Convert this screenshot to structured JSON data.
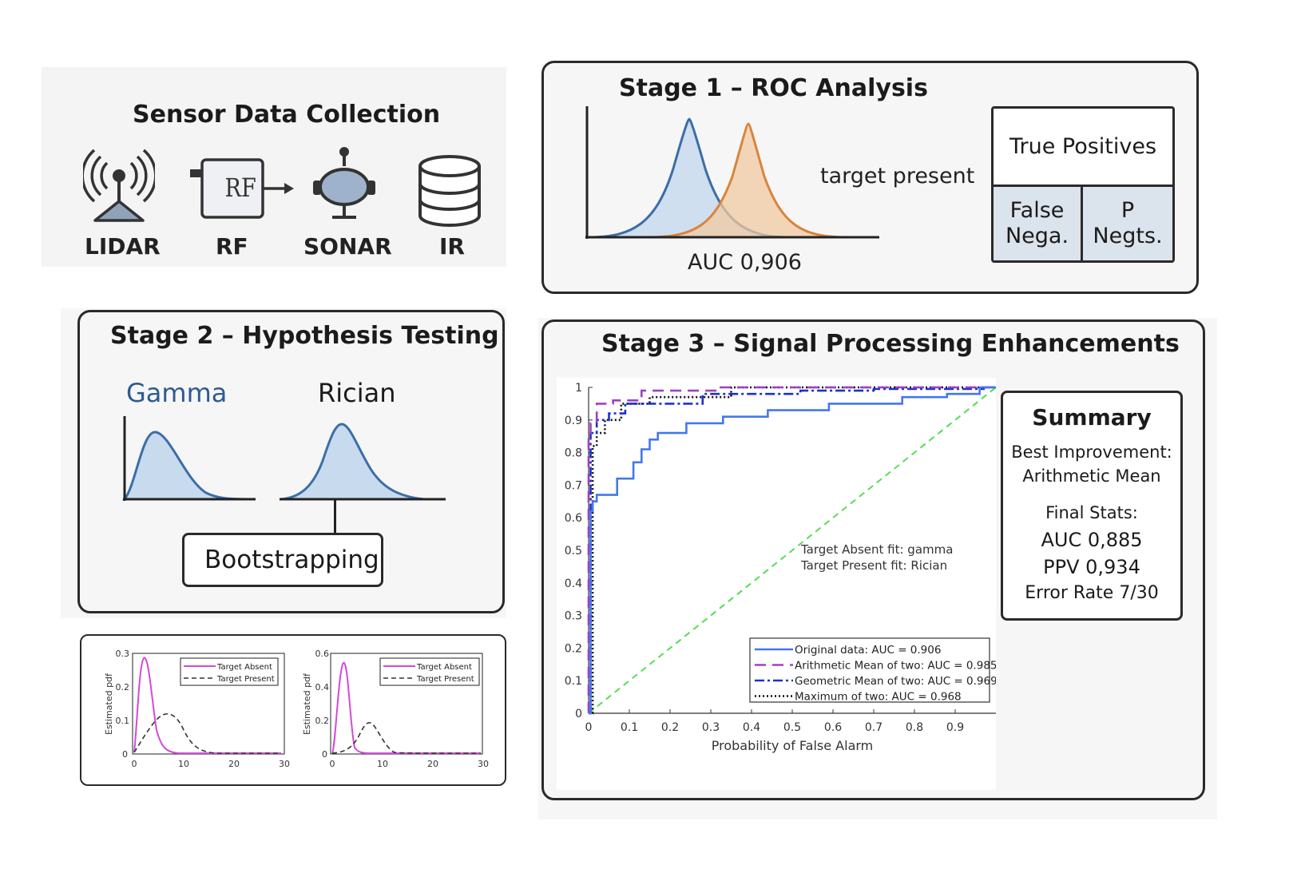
{
  "sensor": {
    "title": "Sensor Data Collection",
    "items": [
      {
        "label": "LIDAR",
        "icon": "antenna-icon"
      },
      {
        "label": "RF",
        "icon": "rf-module-icon"
      },
      {
        "label": "SONAR",
        "icon": "sonar-icon"
      },
      {
        "label": "IR",
        "icon": "database-icon"
      }
    ],
    "rf_glyph": "RF"
  },
  "stage1": {
    "title": "Stage 1 – ROC Analysis",
    "curve_label": "target present",
    "auc": "AUC 0,906",
    "matrix": {
      "top": "True Positives",
      "bottom_left_1": "False",
      "bottom_left_2": "Nega.",
      "bottom_right_1": "P",
      "bottom_right_2": "Negts."
    },
    "colors": {
      "blue": "#3b6ea8",
      "orange": "#d9843b"
    }
  },
  "stage2": {
    "title": "Stage 2 – Hypothesis Testing",
    "gamma": "Gamma",
    "rician": "Rician",
    "bootstrapping": "Bootstrapping"
  },
  "pdfs": {
    "ylabel": "Estimated pdf",
    "legend_absent": "Target Absent",
    "legend_present": "Target Present",
    "left": {
      "yticks": [
        "0",
        "0.1",
        "0.2",
        "0.3"
      ],
      "xticks": [
        "0",
        "10",
        "20",
        "30"
      ]
    },
    "right": {
      "yticks": [
        "0",
        "0.2",
        "0.4",
        "0.6"
      ],
      "xticks": [
        "0",
        "10",
        "20",
        "30"
      ]
    }
  },
  "stage3": {
    "title": "Stage 3 – Signal Processing Enhancements",
    "summary": {
      "title": "Summary",
      "best_1": "Best Improvement:",
      "best_2": "Arithmetic Mean",
      "final": "Final Stats:",
      "auc": "AUC 0,885",
      "ppv": "PPV 0,934",
      "error": "Error Rate 7/30"
    }
  },
  "chart_data": {
    "type": "line",
    "xlabel": "Probability of False Alarm",
    "ylabel": "",
    "xlim": [
      0,
      1
    ],
    "ylim": [
      0,
      1
    ],
    "xticks": [
      "0",
      "0.1",
      "0.2",
      "0.3",
      "0.4",
      "0.5",
      "0.6",
      "0.7",
      "0.8",
      "0.9"
    ],
    "yticks": [
      "0",
      "0.1",
      "0.2",
      "0.3",
      "0.4",
      "0.5",
      "0.6",
      "0.7",
      "0.8",
      "0.9",
      "1"
    ],
    "annotation": [
      "Target Absent fit: gamma",
      "Target Present fit: Rician"
    ],
    "legend_position": "bottom-right",
    "series": [
      {
        "name": "Original data: AUC = 0.906",
        "color": "#4477ee",
        "dash": "",
        "x": [
          0,
          0.005,
          0.005,
          0.01,
          0.01,
          0.02,
          0.02,
          0.07,
          0.07,
          0.11,
          0.11,
          0.13,
          0.13,
          0.15,
          0.15,
          0.17,
          0.17,
          0.24,
          0.24,
          0.33,
          0.33,
          0.44,
          0.44,
          0.59,
          0.59,
          0.77,
          0.77,
          0.88,
          0.88,
          0.96,
          0.96,
          1
        ],
        "y": [
          0,
          0,
          0.62,
          0.62,
          0.65,
          0.65,
          0.67,
          0.67,
          0.72,
          0.72,
          0.77,
          0.77,
          0.81,
          0.81,
          0.84,
          0.84,
          0.86,
          0.86,
          0.89,
          0.89,
          0.91,
          0.91,
          0.93,
          0.93,
          0.95,
          0.95,
          0.97,
          0.97,
          0.98,
          0.98,
          1,
          1
        ]
      },
      {
        "name": "Arithmetic Mean of two: AUC = 0.985",
        "color": "#a040c0",
        "dash": "14,8",
        "x": [
          0,
          0,
          0.005,
          0.005,
          0.02,
          0.02,
          0.06,
          0.06,
          0.13,
          0.13,
          0.32,
          0.32,
          1
        ],
        "y": [
          0,
          0.86,
          0.86,
          0.89,
          0.89,
          0.95,
          0.95,
          0.96,
          0.96,
          0.99,
          0.99,
          1,
          1
        ]
      },
      {
        "name": "Geometric Mean of two: AUC = 0.969",
        "color": "#1a30d0",
        "dash": "12,4,3,4",
        "x": [
          0,
          0.005,
          0.005,
          0.02,
          0.02,
          0.05,
          0.05,
          0.09,
          0.09,
          0.28,
          0.28,
          0.52,
          0.52,
          0.7,
          0.7,
          0.97,
          0.97,
          1
        ],
        "y": [
          0,
          0,
          0.86,
          0.86,
          0.9,
          0.9,
          0.92,
          0.92,
          0.95,
          0.95,
          0.98,
          0.98,
          0.99,
          0.99,
          0.995,
          0.995,
          1,
          1
        ]
      },
      {
        "name": "Maximum of two: AUC = 0.968",
        "color": "#111111",
        "dash": "2,3",
        "x": [
          0,
          0.01,
          0.01,
          0.02,
          0.02,
          0.04,
          0.04,
          0.08,
          0.08,
          0.15,
          0.15,
          0.35,
          0.35,
          1
        ],
        "y": [
          0,
          0,
          0.82,
          0.82,
          0.86,
          0.86,
          0.9,
          0.9,
          0.95,
          0.95,
          0.97,
          0.97,
          1,
          1
        ]
      },
      {
        "name": "",
        "color": "#55dd55",
        "dash": "8,6",
        "x": [
          0,
          1
        ],
        "y": [
          0,
          1
        ]
      }
    ]
  }
}
